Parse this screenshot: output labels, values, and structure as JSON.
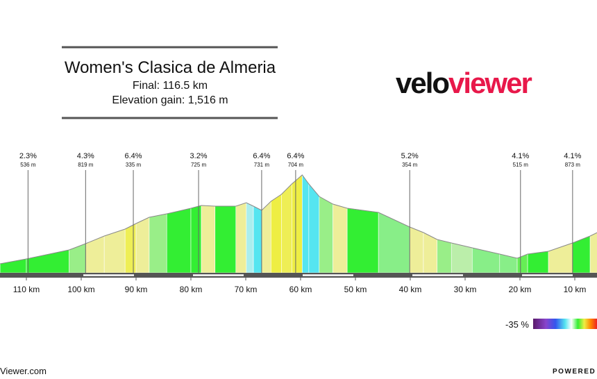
{
  "header": {
    "title": "Women's Clasica de Almeria",
    "final": "Final: 116.5 km",
    "elevation_gain": "Elevation gain: 1,516 m"
  },
  "logo": {
    "part1": "velo",
    "part2": "viewer",
    "color1": "#111111",
    "color2": "#e8184a"
  },
  "chart_data": {
    "type": "area",
    "x": [
      114.8,
      110,
      102.2,
      99.2,
      95.8,
      92.0,
      90,
      87.6,
      84.4,
      80,
      78.1,
      75.6,
      71.8,
      69.9,
      68.6,
      67.1,
      65.4,
      63.5,
      61.6,
      59.7,
      58.5,
      56.6,
      54.1,
      51.5,
      45.8,
      40.1,
      37.6,
      35.1,
      32.5,
      28.7,
      23.7,
      20.5,
      18.6,
      14.8,
      10.4,
      7.2,
      5.9
    ],
    "values": [
      65,
      100,
      165,
      210,
      265,
      315,
      355,
      400,
      425,
      465,
      485,
      480,
      480,
      505,
      480,
      450,
      515,
      565,
      640,
      705,
      640,
      550,
      495,
      465,
      435,
      330,
      290,
      240,
      215,
      180,
      135,
      105,
      135,
      155,
      215,
      265,
      290
    ],
    "segment_colors": [
      "#33ee33",
      "#33ee33",
      "#99ee88",
      "#eeee99",
      "#eeee99",
      "#eeee55",
      "#eeee99",
      "#99ee88",
      "#33ee33",
      "#33ee33",
      "#eeee99",
      "#33ee33",
      "#eeee99",
      "#aaeeee",
      "#55e5f0",
      "#eeee99",
      "#eeee44",
      "#eeee55",
      "#eeee44",
      "#55e5f0",
      "#55e5f0",
      "#99ee88",
      "#eeee99",
      "#33ee33",
      "#88ee88",
      "#eeee99",
      "#eeee99",
      "#99ee88",
      "#bbeeaa",
      "#88ee88",
      "#88ee88",
      "#66ee55",
      "#33ee33",
      "#eeee99",
      "#33ee33",
      "#eeee99"
    ],
    "xticks": [
      {
        "value": 110,
        "label": "110 km"
      },
      {
        "value": 100,
        "label": "100 km"
      },
      {
        "value": 90,
        "label": "90 km"
      },
      {
        "value": 80,
        "label": "80 km"
      },
      {
        "value": 70,
        "label": "70 km"
      },
      {
        "value": 60,
        "label": "60 km"
      },
      {
        "value": 50,
        "label": "50 km"
      },
      {
        "value": 40,
        "label": "40 km"
      },
      {
        "value": 30,
        "label": "30 km"
      },
      {
        "value": 20,
        "label": "20 km"
      },
      {
        "value": 10,
        "label": "10 km"
      }
    ],
    "climbs": [
      {
        "km": 109.7,
        "gradient": "2.3%",
        "length": "536 m"
      },
      {
        "km": 99.2,
        "gradient": "4.3%",
        "length": "819 m"
      },
      {
        "km": 90.5,
        "gradient": "6.4%",
        "length": "335 m"
      },
      {
        "km": 78.6,
        "gradient": "3.2%",
        "length": "725 m"
      },
      {
        "km": 67.1,
        "gradient": "6.4%",
        "length": "731 m"
      },
      {
        "km": 60.9,
        "gradient": "6.4%",
        "length": "704 m"
      },
      {
        "km": 40.1,
        "gradient": "5.2%",
        "length": "354 m"
      },
      {
        "km": 19.9,
        "gradient": "4.1%",
        "length": "515 m"
      },
      {
        "km": 10.4,
        "gradient": "4.1%",
        "length": "873 m"
      }
    ],
    "legend_label": "-35 %"
  },
  "footer": {
    "left": "Viewer.com",
    "right": "POWERED BY"
  }
}
